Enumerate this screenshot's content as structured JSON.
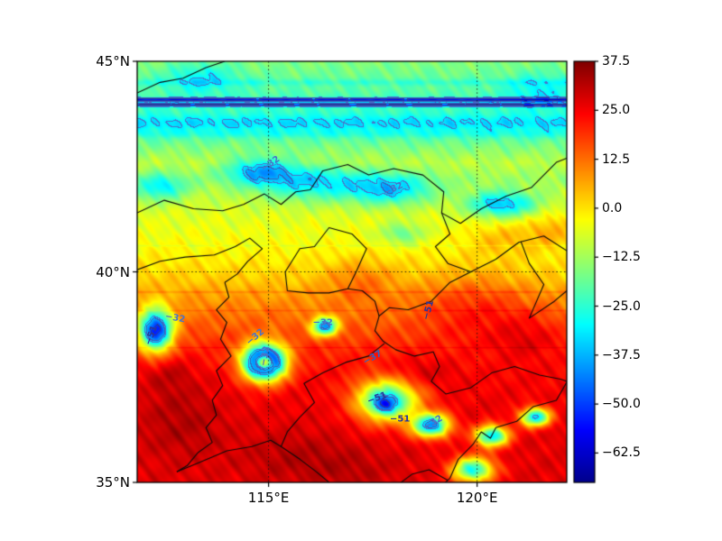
{
  "chart_data": {
    "type": "heatmap",
    "title": "",
    "description": "Geographic filled-contour (jet colormap) temperature/brightness field over North China with blue labeled contours and black province/coast outlines",
    "x_axis": {
      "range": [
        111.85,
        122.15
      ],
      "ticks": [
        {
          "value": 115,
          "label": "115°E"
        },
        {
          "value": 120,
          "label": "120°E"
        }
      ]
    },
    "y_axis": {
      "range": [
        35,
        45
      ],
      "ticks": [
        {
          "value": 45,
          "label": "45°N"
        },
        {
          "value": 40,
          "label": "40°N"
        },
        {
          "value": 35,
          "label": "35°N"
        }
      ]
    },
    "grid": {
      "lon": [
        115,
        120
      ],
      "lat": [
        40
      ],
      "style": "dotted"
    },
    "colorbar": {
      "range": [
        -70,
        37.5
      ],
      "colormap": "jet",
      "ticks": [
        {
          "value": 37.5,
          "label": "37.5"
        },
        {
          "value": 25,
          "label": "25.0"
        },
        {
          "value": 12.5,
          "label": "12.5"
        },
        {
          "value": 0,
          "label": "0.0"
        },
        {
          "value": -12.5,
          "label": "−12.5"
        },
        {
          "value": -25,
          "label": "−25.0"
        },
        {
          "value": -37.5,
          "label": "−37.5"
        },
        {
          "value": -50,
          "label": "−50.0"
        },
        {
          "value": -62.5,
          "label": "−62.5"
        }
      ],
      "stops": [
        [
          0,
          0,
          0,
          140
        ],
        [
          0.125,
          0,
          0,
          255
        ],
        [
          0.375,
          0,
          255,
          255
        ],
        [
          0.625,
          255,
          255,
          0
        ],
        [
          0.875,
          255,
          0,
          0
        ],
        [
          1,
          128,
          0,
          0
        ]
      ]
    },
    "contours": {
      "levels": [
        {
          "value": -32,
          "color": "#4a74c9"
        },
        {
          "value": -37,
          "color": "#3a5cbe"
        },
        {
          "value": -51,
          "color": "#27379b"
        }
      ],
      "labels": [
        {
          "text": "−32",
          "lon": 115.05,
          "lat": 42.55,
          "rot": -35,
          "level": -32
        },
        {
          "text": "−32",
          "lon": 118.0,
          "lat": 41.95,
          "rot": -25,
          "level": -32
        },
        {
          "text": "−32",
          "lon": 112.75,
          "lat": 38.9,
          "rot": 10,
          "level": -32
        },
        {
          "text": "−51",
          "lon": 112.2,
          "lat": 38.5,
          "rot": -70,
          "level": -51
        },
        {
          "text": "−32",
          "lon": 114.68,
          "lat": 38.45,
          "rot": -40,
          "level": -32
        },
        {
          "text": "−32",
          "lon": 116.3,
          "lat": 38.78,
          "rot": 0,
          "level": -32
        },
        {
          "text": "−37",
          "lon": 117.5,
          "lat": 37.95,
          "rot": -30,
          "level": -37
        },
        {
          "text": "−51",
          "lon": 118.85,
          "lat": 39.1,
          "rot": -75,
          "level": -51
        },
        {
          "text": "−51",
          "lon": 117.6,
          "lat": 37.0,
          "rot": -20,
          "level": -51
        },
        {
          "text": "−51",
          "lon": 118.15,
          "lat": 36.5,
          "rot": 0,
          "level": -51
        },
        {
          "text": "−32",
          "lon": 118.95,
          "lat": 36.42,
          "rot": -30,
          "level": -32
        },
        {
          "text": "−32",
          "lon": 114.92,
          "lat": 38.0,
          "rot": -80,
          "level": -32
        }
      ]
    },
    "field_model": {
      "base_profile": [
        [
          35,
          27
        ],
        [
          36,
          27
        ],
        [
          36.8,
          26
        ],
        [
          37.6,
          24
        ],
        [
          38.3,
          19
        ],
        [
          38.8,
          14
        ],
        [
          39.3,
          9
        ],
        [
          39.8,
          3
        ],
        [
          40.3,
          -1
        ],
        [
          40.8,
          -4
        ],
        [
          41.3,
          -6
        ],
        [
          41.8,
          -9
        ],
        [
          42.2,
          -13
        ],
        [
          42.6,
          -10
        ],
        [
          43.0,
          -17
        ],
        [
          43.45,
          -26
        ],
        [
          43.75,
          -24
        ],
        [
          44.15,
          -22
        ],
        [
          44.35,
          -20
        ],
        [
          45,
          -16
        ]
      ],
      "stripes": [
        {
          "lat": 44.08,
          "sigma": 0.045,
          "amp": -34
        },
        {
          "lat": 43.96,
          "sigma": 0.04,
          "amp": -30
        },
        {
          "lat": 43.55,
          "sigma": 0.16,
          "amp": -7
        },
        {
          "lat": 43.28,
          "sigma": 0.1,
          "amp": -4
        },
        {
          "lat": 44.5,
          "sigma": 0.08,
          "amp": -5
        },
        {
          "lat": 39.52,
          "sigma": 0.03,
          "amp": 4
        },
        {
          "lat": 39.08,
          "sigma": 0.025,
          "amp": 3
        },
        {
          "lat": 40.62,
          "sigma": 0.02,
          "amp": -3
        },
        {
          "lat": 38.2,
          "sigma": 0.02,
          "amp": 3
        }
      ],
      "blobs": [
        {
          "lon": 117.85,
          "lat": 36.95,
          "slon": 0.75,
          "slat": 0.5,
          "amp": -55
        },
        {
          "lon": 117.8,
          "lat": 36.85,
          "slon": 0.28,
          "slat": 0.2,
          "amp": -30
        },
        {
          "lon": 118.9,
          "lat": 36.35,
          "slon": 0.45,
          "slat": 0.28,
          "amp": -65
        },
        {
          "lon": 120.35,
          "lat": 36.1,
          "slon": 0.4,
          "slat": 0.25,
          "amp": -60
        },
        {
          "lon": 121.4,
          "lat": 36.55,
          "slon": 0.35,
          "slat": 0.22,
          "amp": -60
        },
        {
          "lon": 119.9,
          "lat": 35.3,
          "slon": 0.5,
          "slat": 0.3,
          "amp": -55
        },
        {
          "lon": 114.9,
          "lat": 37.85,
          "slon": 0.5,
          "slat": 0.42,
          "amp": -100
        },
        {
          "lon": 114.9,
          "lat": 37.85,
          "slon": 0.2,
          "slat": 0.17,
          "amp": 72
        },
        {
          "lon": 112.3,
          "lat": 38.6,
          "slon": 0.4,
          "slat": 0.5,
          "amp": -70
        },
        {
          "lon": 116.35,
          "lat": 38.7,
          "slon": 0.3,
          "slat": 0.22,
          "amp": -55
        },
        {
          "lon": 114.8,
          "lat": 42.4,
          "slon": 0.8,
          "slat": 0.3,
          "amp": -24
        },
        {
          "lon": 116.0,
          "lat": 42.1,
          "slon": 1.3,
          "slat": 0.4,
          "amp": -20
        },
        {
          "lon": 117.9,
          "lat": 41.95,
          "slon": 1.0,
          "slat": 0.35,
          "amp": -24
        },
        {
          "lon": 120.6,
          "lat": 41.6,
          "slon": 0.8,
          "slat": 0.3,
          "amp": -28
        },
        {
          "lon": 112.4,
          "lat": 42.0,
          "slon": 0.6,
          "slat": 0.3,
          "amp": -20
        },
        {
          "lon": 113.4,
          "lat": 44.6,
          "slon": 0.8,
          "slat": 0.35,
          "amp": -12
        },
        {
          "lon": 121.5,
          "lat": 44.3,
          "slon": 0.8,
          "slat": 0.4,
          "amp": -10
        },
        {
          "lon": 118.2,
          "lat": 40.9,
          "slon": 0.5,
          "slat": 0.25,
          "amp": -14
        },
        {
          "lon": 112.9,
          "lat": 36.5,
          "slon": 1.0,
          "slat": 0.9,
          "amp": 6
        },
        {
          "lon": 115.6,
          "lat": 35.6,
          "slon": 1.2,
          "slat": 0.6,
          "amp": 5
        },
        {
          "lon": 117.0,
          "lat": 35.3,
          "slon": 1.0,
          "slat": 0.5,
          "amp": 4
        },
        {
          "lon": 112.6,
          "lat": 37.6,
          "slon": 0.6,
          "slat": 0.5,
          "amp": 6
        },
        {
          "lon": 117.2,
          "lat": 39.8,
          "slon": 0.8,
          "slat": 0.5,
          "amp": 9
        },
        {
          "lon": 119.9,
          "lat": 39.2,
          "slon": 1.3,
          "slat": 0.8,
          "amp": 10
        },
        {
          "lon": 121.2,
          "lat": 38.5,
          "slon": 0.9,
          "slat": 0.6,
          "amp": 8
        },
        {
          "lon": 121.8,
          "lat": 41.0,
          "slon": 0.6,
          "slat": 0.4,
          "amp": 10
        },
        {
          "lon": 120.6,
          "lat": 40.8,
          "slon": 0.9,
          "slat": 0.4,
          "amp": 8
        },
        {
          "lon": 118.6,
          "lat": 37.6,
          "slon": 0.8,
          "slat": 0.4,
          "amp": 6
        }
      ]
    },
    "map_outlines": [
      {
        "name": "mongolia-border",
        "pts": [
          [
            111.85,
            44.25
          ],
          [
            112.4,
            44.5
          ],
          [
            112.95,
            44.6
          ],
          [
            113.5,
            44.85
          ],
          [
            113.95,
            45.0
          ]
        ]
      },
      {
        "name": "inner-mongolia-border",
        "pts": [
          [
            111.85,
            41.4
          ],
          [
            112.5,
            41.7
          ],
          [
            113.2,
            41.5
          ],
          [
            113.9,
            41.45
          ],
          [
            114.4,
            41.6
          ],
          [
            114.9,
            41.85
          ],
          [
            115.3,
            41.6
          ],
          [
            115.65,
            41.9
          ],
          [
            116.0,
            41.95
          ],
          [
            116.3,
            42.4
          ],
          [
            116.9,
            42.55
          ],
          [
            117.4,
            42.3
          ],
          [
            118.0,
            42.45
          ],
          [
            118.7,
            42.3
          ],
          [
            119.2,
            41.9
          ],
          [
            119.15,
            41.4
          ],
          [
            119.6,
            41.15
          ],
          [
            120.1,
            41.5
          ],
          [
            120.7,
            41.8
          ],
          [
            121.3,
            42.0
          ],
          [
            121.9,
            42.6
          ],
          [
            122.15,
            42.7
          ]
        ]
      },
      {
        "name": "shanxi-north-border",
        "pts": [
          [
            111.85,
            40.05
          ],
          [
            112.4,
            40.25
          ],
          [
            113.0,
            40.35
          ],
          [
            113.7,
            40.4
          ],
          [
            114.2,
            40.6
          ],
          [
            114.55,
            40.8
          ],
          [
            114.85,
            40.55
          ],
          [
            114.5,
            40.25
          ],
          [
            114.25,
            39.95
          ],
          [
            113.95,
            39.75
          ]
        ]
      },
      {
        "name": "shanxi-hebei-border",
        "pts": [
          [
            113.95,
            39.75
          ],
          [
            114.05,
            39.4
          ],
          [
            113.75,
            39.1
          ],
          [
            114.0,
            38.8
          ],
          [
            113.85,
            38.4
          ],
          [
            114.1,
            38.0
          ],
          [
            113.75,
            37.65
          ],
          [
            113.9,
            37.3
          ],
          [
            113.65,
            36.95
          ],
          [
            113.75,
            36.6
          ],
          [
            113.5,
            36.3
          ],
          [
            113.65,
            35.95
          ],
          [
            113.3,
            35.7
          ],
          [
            113.05,
            35.4
          ],
          [
            112.8,
            35.25
          ]
        ]
      },
      {
        "name": "beijing-boundary",
        "pts": [
          [
            115.45,
            39.55
          ],
          [
            115.95,
            39.5
          ],
          [
            116.45,
            39.5
          ],
          [
            116.9,
            39.6
          ],
          [
            117.1,
            40.0
          ],
          [
            117.35,
            40.55
          ],
          [
            117.0,
            40.9
          ],
          [
            116.45,
            41.05
          ],
          [
            116.1,
            40.6
          ],
          [
            115.75,
            40.55
          ],
          [
            115.4,
            40.0
          ],
          [
            115.45,
            39.55
          ]
        ]
      },
      {
        "name": "tianjin-boundary",
        "pts": [
          [
            116.9,
            39.6
          ],
          [
            117.25,
            39.55
          ],
          [
            117.55,
            39.3
          ],
          [
            117.65,
            38.95
          ]
        ]
      },
      {
        "name": "hebei-shandong-border",
        "pts": [
          [
            115.3,
            35.85
          ],
          [
            115.45,
            36.2
          ],
          [
            115.75,
            36.55
          ],
          [
            116.1,
            36.9
          ],
          [
            115.85,
            37.35
          ],
          [
            116.3,
            37.6
          ],
          [
            116.85,
            37.85
          ],
          [
            117.4,
            38.0
          ],
          [
            117.78,
            38.3
          ]
        ]
      },
      {
        "name": "henan-north-border",
        "pts": [
          [
            112.8,
            35.25
          ],
          [
            113.4,
            35.5
          ],
          [
            114.0,
            35.75
          ],
          [
            114.6,
            35.85
          ],
          [
            115.05,
            36.0
          ],
          [
            115.3,
            35.85
          ],
          [
            115.75,
            35.55
          ],
          [
            116.15,
            35.25
          ],
          [
            116.45,
            35.0
          ]
        ]
      },
      {
        "name": "hebei-liaoning-border",
        "pts": [
          [
            119.15,
            41.4
          ],
          [
            119.35,
            40.9
          ],
          [
            119.0,
            40.6
          ],
          [
            119.3,
            40.2
          ],
          [
            119.85,
            40.0
          ]
        ]
      },
      {
        "name": "bohai-coastline",
        "pts": [
          [
            122.15,
            40.5
          ],
          [
            121.6,
            40.85
          ],
          [
            121.0,
            40.7
          ],
          [
            120.45,
            40.3
          ],
          [
            119.85,
            40.0
          ],
          [
            119.35,
            39.75
          ],
          [
            118.9,
            39.3
          ],
          [
            118.35,
            39.1
          ],
          [
            117.9,
            39.15
          ],
          [
            117.65,
            38.95
          ],
          [
            117.55,
            38.6
          ],
          [
            117.75,
            38.35
          ],
          [
            118.05,
            38.15
          ],
          [
            118.5,
            38.0
          ],
          [
            118.95,
            38.1
          ],
          [
            119.1,
            37.75
          ],
          [
            118.9,
            37.4
          ],
          [
            119.25,
            37.1
          ],
          [
            119.85,
            37.25
          ],
          [
            120.35,
            37.6
          ],
          [
            120.9,
            37.75
          ],
          [
            121.5,
            37.55
          ],
          [
            122.0,
            37.45
          ],
          [
            122.15,
            37.4
          ]
        ]
      },
      {
        "name": "liaodong-peninsula",
        "pts": [
          [
            121.05,
            40.72
          ],
          [
            121.25,
            40.2
          ],
          [
            121.6,
            39.7
          ],
          [
            121.25,
            38.9
          ],
          [
            121.85,
            39.3
          ],
          [
            122.15,
            39.55
          ]
        ]
      },
      {
        "name": "shandong-south-coast",
        "pts": [
          [
            122.15,
            37.38
          ],
          [
            121.9,
            36.95
          ],
          [
            121.35,
            36.8
          ],
          [
            120.95,
            36.45
          ],
          [
            120.45,
            36.3
          ],
          [
            120.32,
            36.05
          ],
          [
            120.1,
            36.2
          ],
          [
            119.9,
            35.9
          ],
          [
            119.55,
            35.55
          ],
          [
            119.35,
            35.1
          ],
          [
            119.22,
            34.98
          ]
        ]
      },
      {
        "name": "shandong-jiangsu-border",
        "pts": [
          [
            119.3,
            35.05
          ],
          [
            118.85,
            35.3
          ],
          [
            118.45,
            35.2
          ],
          [
            118.15,
            34.98
          ]
        ]
      }
    ]
  }
}
